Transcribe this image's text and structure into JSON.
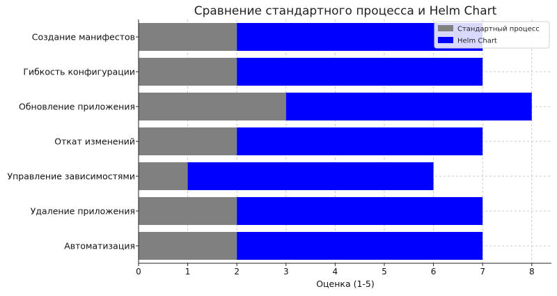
{
  "chart_data": {
    "type": "bar",
    "orientation": "horizontal",
    "stacked": true,
    "title": "Сравнение стандартного процесса и Helm Chart",
    "xlabel": "Оценка (1-5)",
    "ylabel": "",
    "categories": [
      "Автоматизация",
      "Удаление приложения",
      "Управление зависимостями",
      "Откат изменений",
      "Обновление приложения",
      "Гибкость конфигурации",
      "Создание манифестов"
    ],
    "series": [
      {
        "name": "Стандартный процесс",
        "color": "#808080",
        "values": [
          2,
          2,
          1,
          2,
          3,
          2,
          2
        ]
      },
      {
        "name": "Helm Chart",
        "color": "#0000ff",
        "values": [
          5,
          5,
          5,
          5,
          5,
          5,
          5
        ]
      }
    ],
    "xlim": [
      0,
      8.4
    ],
    "xticks": [
      "0",
      "1",
      "2",
      "3",
      "4",
      "5",
      "6",
      "7",
      "8"
    ],
    "grid": true,
    "legend_position": "top-right"
  }
}
